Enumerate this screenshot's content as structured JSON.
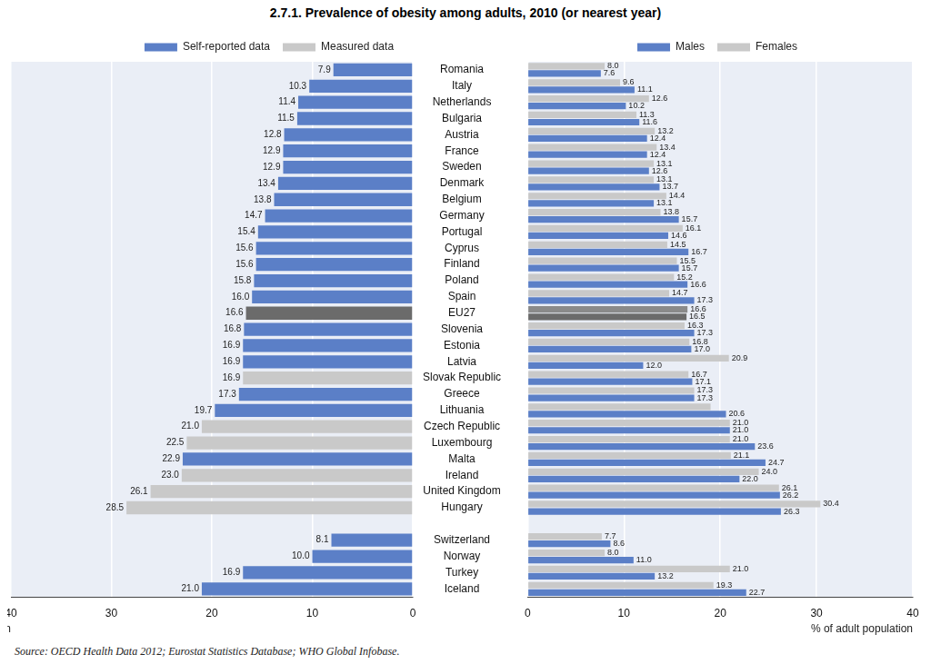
{
  "title": "2.7.1. Prevalence of obesity among adults, 2010 (or nearest year)",
  "source": "Source: OECD Health Data 2012; Eurostat Statistics Database; WHO Global Infobase.",
  "chart_data": [
    {
      "type": "bar",
      "orientation": "horizontal",
      "grid": true,
      "data_labels": true,
      "legend": "top",
      "x_label": "% of adult population",
      "categories": [
        "Romania",
        "Italy",
        "Netherlands",
        "Bulgaria",
        "Austria",
        "France",
        "Sweden",
        "Denmark",
        "Belgium",
        "Germany",
        "Portugal",
        "Cyprus",
        "Finland",
        "Poland",
        "Spain",
        "EU27",
        "Slovenia",
        "Estonia",
        "Latvia",
        "Slovak Republic",
        "Greece",
        "Lithuania",
        "Czech Republic",
        "Luxembourg",
        "Malta",
        "Ireland",
        "United Kingdom",
        "Hungary",
        null,
        "Switzerland",
        "Norway",
        "Turkey",
        "Iceland"
      ],
      "xlim": [
        0,
        40
      ],
      "xticks": [
        0,
        10,
        20,
        30,
        40
      ],
      "series": [
        {
          "name": "Self-reported data",
          "color": "#5b7fc7",
          "colors": [
            "#5b7fc7",
            "#5b7fc7",
            "#5b7fc7",
            "#5b7fc7",
            "#5b7fc7",
            "#5b7fc7",
            "#5b7fc7",
            "#5b7fc7",
            "#5b7fc7",
            "#5b7fc7",
            "#5b7fc7",
            "#5b7fc7",
            "#5b7fc7",
            "#5b7fc7",
            "#5b7fc7",
            "#6b6b6b",
            "#5b7fc7",
            "#5b7fc7",
            "#5b7fc7",
            "#5b7fc7",
            "#5b7fc7",
            "#5b7fc7",
            "#5b7fc7",
            "#5b7fc7",
            "#5b7fc7",
            "#5b7fc7",
            "#5b7fc7",
            "#5b7fc7",
            "#5b7fc7",
            "#5b7fc7",
            "#5b7fc7",
            "#5b7fc7",
            "#5b7fc7"
          ],
          "values": [
            7.9,
            10.3,
            11.4,
            11.5,
            12.8,
            12.9,
            12.9,
            13.4,
            13.8,
            14.7,
            15.4,
            15.6,
            15.6,
            15.8,
            16.0,
            16.6,
            16.8,
            16.9,
            16.9,
            null,
            17.3,
            19.7,
            null,
            null,
            22.9,
            null,
            null,
            null,
            null,
            8.1,
            10.0,
            16.9,
            21.0
          ],
          "value_labels": [
            "7.9",
            "10.3",
            "11.4",
            "11.5",
            "12.8",
            "12.9",
            "12.9",
            "13.4",
            "13.8",
            "14.7",
            "15.4",
            "15.6",
            "15.6",
            "15.8",
            "16.0",
            "16.6",
            "16.8",
            "16.9",
            "16.9",
            null,
            "17.3",
            "19.7",
            null,
            null,
            "22.9",
            null,
            null,
            null,
            null,
            "8.1",
            "10.0",
            "16.9",
            "21.0"
          ]
        },
        {
          "name": "Measured data",
          "color": "#c9c9c9",
          "values": [
            null,
            null,
            null,
            null,
            null,
            null,
            null,
            null,
            null,
            null,
            null,
            null,
            null,
            null,
            null,
            null,
            null,
            null,
            null,
            16.9,
            null,
            null,
            21.0,
            22.5,
            null,
            23.0,
            26.1,
            28.5,
            null,
            null,
            null,
            null,
            null
          ],
          "value_labels": [
            null,
            null,
            null,
            null,
            null,
            null,
            null,
            null,
            null,
            null,
            null,
            null,
            null,
            null,
            null,
            null,
            null,
            null,
            null,
            "16.9",
            null,
            null,
            "21.0",
            "22.5",
            null,
            "23.0",
            "26.1",
            "28.5",
            null,
            null,
            null,
            null,
            null
          ]
        }
      ]
    },
    {
      "type": "bar",
      "orientation": "horizontal",
      "grid": true,
      "data_labels": true,
      "legend": "top",
      "tick_labels": "x",
      "x_label": "% of adult population",
      "categories": [
        "Romania",
        "Italy",
        "Netherlands",
        "Bulgaria",
        "Austria",
        "France",
        "Sweden",
        "Denmark",
        "Belgium",
        "Germany",
        "Portugal",
        "Cyprus",
        "Finland",
        "Poland",
        "Spain",
        "EU27",
        "Slovenia",
        "Estonia",
        "Latvia",
        "Slovak Republic",
        "Greece",
        "Lithuania",
        "Czech Republic",
        "Luxembourg",
        "Malta",
        "Ireland",
        "United Kingdom",
        "Hungary",
        null,
        "Switzerland",
        "Norway",
        "Turkey",
        "Iceland"
      ],
      "xlim": [
        0,
        40
      ],
      "xticks": [
        0,
        10,
        20,
        30,
        40
      ],
      "series": [
        {
          "name": "Males",
          "color": "#5b7fc7",
          "colors": [
            "#5b7fc7",
            "#5b7fc7",
            "#5b7fc7",
            "#5b7fc7",
            "#5b7fc7",
            "#5b7fc7",
            "#5b7fc7",
            "#5b7fc7",
            "#5b7fc7",
            "#5b7fc7",
            "#5b7fc7",
            "#5b7fc7",
            "#5b7fc7",
            "#5b7fc7",
            "#5b7fc7",
            "#6b6b6b",
            "#5b7fc7",
            "#5b7fc7",
            "#5b7fc7",
            "#5b7fc7",
            "#5b7fc7",
            "#5b7fc7",
            "#5b7fc7",
            "#5b7fc7",
            "#5b7fc7",
            "#5b7fc7",
            "#5b7fc7",
            "#5b7fc7",
            "#5b7fc7",
            "#5b7fc7",
            "#5b7fc7",
            "#5b7fc7",
            "#5b7fc7"
          ],
          "values": [
            7.6,
            11.1,
            10.2,
            11.6,
            12.4,
            12.4,
            12.6,
            13.7,
            13.1,
            15.7,
            14.6,
            16.7,
            15.7,
            16.6,
            17.3,
            16.5,
            17.3,
            17.0,
            12.0,
            17.1,
            17.3,
            20.6,
            21.0,
            23.6,
            24.7,
            22.0,
            26.2,
            26.3,
            null,
            8.6,
            11.0,
            13.2,
            22.7
          ],
          "value_labels": [
            "7.6",
            "11.1",
            "10.2",
            "11.6",
            "12.4",
            "12.4",
            "12.6",
            "13.7",
            "13.1",
            "15.7",
            "14.6",
            "16.7",
            "15.7",
            "16.6",
            "17.3",
            "16.5",
            "17.3",
            "17.0",
            "12.0",
            "17.1",
            "17.3",
            "20.6",
            "21.0",
            "23.6",
            "24.7",
            "22.0",
            "26.2",
            "26.3",
            null,
            "8.6",
            "11.0",
            "13.2",
            "22.7"
          ]
        },
        {
          "name": "Females",
          "color": "#c9c9c9",
          "colors": [
            "#c9c9c9",
            "#c9c9c9",
            "#c9c9c9",
            "#c9c9c9",
            "#c9c9c9",
            "#c9c9c9",
            "#c9c9c9",
            "#c9c9c9",
            "#c9c9c9",
            "#c9c9c9",
            "#c9c9c9",
            "#c9c9c9",
            "#c9c9c9",
            "#c9c9c9",
            "#c9c9c9",
            "#8a8a8a",
            "#c9c9c9",
            "#c9c9c9",
            "#c9c9c9",
            "#c9c9c9",
            "#c9c9c9",
            "#c9c9c9",
            "#c9c9c9",
            "#c9c9c9",
            "#c9c9c9",
            "#c9c9c9",
            "#c9c9c9",
            "#c9c9c9",
            "#c9c9c9",
            "#c9c9c9",
            "#c9c9c9",
            "#c9c9c9",
            "#c9c9c9"
          ],
          "values": [
            8.0,
            9.6,
            12.6,
            11.3,
            13.2,
            13.4,
            13.1,
            13.1,
            14.4,
            13.8,
            16.1,
            14.5,
            15.5,
            15.2,
            14.7,
            16.6,
            16.3,
            16.8,
            20.9,
            16.7,
            17.3,
            19.0,
            21.0,
            21.0,
            21.1,
            24.0,
            26.1,
            30.4,
            null,
            7.7,
            8.0,
            21.0,
            19.3
          ],
          "value_labels": [
            "8.0",
            "9.6",
            "12.6",
            "11.3",
            "13.2",
            "13.4",
            "13.1",
            "13.1",
            "14.4",
            "13.8",
            "16.1",
            "14.5",
            "15.5",
            "15.2",
            "14.7",
            "16.6",
            "16.3",
            "16.8",
            "20.9",
            "16.7",
            "17.3",
            null,
            "21.0",
            "21.0",
            "21.1",
            "24.0",
            "26.1",
            "30.4",
            null,
            "7.7",
            "8.0",
            "21.0",
            "19.3"
          ]
        }
      ]
    }
  ]
}
